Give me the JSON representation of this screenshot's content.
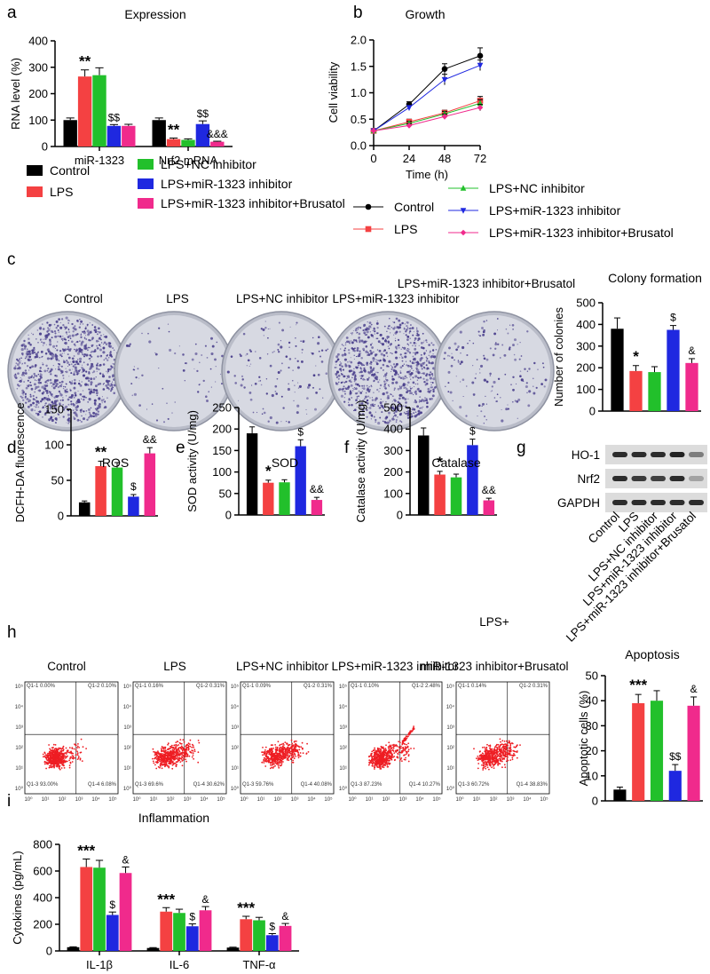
{
  "colors": {
    "Control": "#000000",
    "LPS": "#f44142",
    "LPS+NC inhibitor": "#22c02b",
    "LPS+miR-1323 inhibitor": "#1f28e0",
    "LPS+miR-1323 inhibitor+Brusatol": "#f02a8c"
  },
  "groups": [
    "Control",
    "LPS",
    "LPS+NC inhibitor",
    "LPS+miR-1323 inhibitor",
    "LPS+miR-1323 inhibitor+Brusatol"
  ],
  "labels": {
    "a": "a",
    "b": "b",
    "c": "c",
    "d": "d",
    "e": "e",
    "f": "f",
    "g": "g",
    "h": "h",
    "i": "i"
  },
  "panel_c_headers": [
    "Control",
    "LPS",
    "LPS+NC inhibitor",
    "LPS+miR-1323 inhibitor",
    "LPS+miR-1323 inhibitor+Brusatol"
  ],
  "panel_g": {
    "rows": [
      "HO-1",
      "Nrf2",
      "GAPDH"
    ],
    "lanes": [
      "Control",
      "LPS",
      "LPS+NC inhibitor",
      "LPS+miR-1323 inhibitor",
      "LPS+miR-1323 inhibitor+Brusatol"
    ]
  },
  "panel_h": {
    "headers": [
      "Control",
      "LPS",
      "LPS+NC inhibitor",
      "LPS+miR-1323 inhibitor",
      "LPS+",
      "miR-1323 inhibitor+Brusatol"
    ],
    "quadrants": [
      [
        "Q1-1\n0.00%",
        "Q1-2\n0.10%",
        "Q1-3\n93.00%",
        "Q1-4\n6.08%"
      ],
      [
        "Q1-1\n0.16%",
        "Q1-2\n0.31%",
        "Q1-3\n69.6%",
        "Q1-4\n30.62%"
      ],
      [
        "Q1-1\n0.09%",
        "Q1-2\n0.31%",
        "Q1-3\n59.76%",
        "Q1-4\n40.08%"
      ],
      [
        "Q1-1\n0.10%",
        "Q1-2\n2.48%",
        "Q1-3\n87.23%",
        "Q1-4\n10.27%"
      ],
      [
        "Q1-1\n0.14%",
        "Q1-2\n0.31%",
        "Q1-3\n60.72%",
        "Q1-4\n38.83%"
      ]
    ],
    "axis_ticks": [
      "10⁰",
      "10¹",
      "10²",
      "10³",
      "10⁴",
      "10⁵"
    ]
  },
  "chart_data": [
    {
      "panel": "a",
      "type": "bar",
      "title": "Expression",
      "ylabel": "RNA level (%)",
      "categories": [
        "miR-1323",
        "Nrf2 mRNA"
      ],
      "ylim": [
        0,
        400
      ],
      "yticks": [
        0,
        100,
        200,
        300,
        400
      ],
      "series": [
        {
          "name": "Control",
          "values": [
            100,
            100
          ],
          "err": [
            8,
            8
          ]
        },
        {
          "name": "LPS",
          "values": [
            265,
            28
          ],
          "err": [
            25,
            4
          ]
        },
        {
          "name": "LPS+NC inhibitor",
          "values": [
            270,
            25
          ],
          "err": [
            28,
            4
          ]
        },
        {
          "name": "LPS+miR-1323 inhibitor",
          "values": [
            78,
            85
          ],
          "err": [
            5,
            12
          ]
        },
        {
          "name": "LPS+miR-1323 inhibitor+Brusatol",
          "values": [
            78,
            18
          ],
          "err": [
            6,
            2
          ]
        }
      ],
      "annotations": [
        {
          "text": "**",
          "category": 0,
          "series": 1
        },
        {
          "text": "$$",
          "category": 0,
          "series": 3
        },
        {
          "text": "**",
          "category": 1,
          "series": 1
        },
        {
          "text": "$$",
          "category": 1,
          "series": 3
        },
        {
          "text": "&&&",
          "category": 1,
          "series": 4
        }
      ]
    },
    {
      "panel": "b",
      "type": "line",
      "title": "Growth",
      "xlabel": "Time (h)",
      "ylabel": "Cell viability",
      "x": [
        0,
        24,
        48,
        72
      ],
      "xlim": [
        0,
        72
      ],
      "xticks": [
        0,
        24,
        48,
        72
      ],
      "ylim": [
        0,
        2.0
      ],
      "yticks": [
        0,
        0.5,
        1.0,
        1.5,
        2.0
      ],
      "series": [
        {
          "name": "Control",
          "marker": "circle",
          "values": [
            0.28,
            0.78,
            1.45,
            1.7
          ],
          "err": [
            0.02,
            0.05,
            0.1,
            0.15
          ]
        },
        {
          "name": "LPS",
          "marker": "square",
          "values": [
            0.28,
            0.45,
            0.62,
            0.85
          ],
          "err": [
            0.02,
            0.05,
            0.05,
            0.08
          ]
        },
        {
          "name": "LPS+NC inhibitor",
          "marker": "triangle",
          "values": [
            0.28,
            0.42,
            0.6,
            0.8
          ],
          "err": [
            0.02,
            0.04,
            0.05,
            0.07
          ]
        },
        {
          "name": "LPS+miR-1323 inhibitor",
          "marker": "triangle-down",
          "values": [
            0.28,
            0.72,
            1.25,
            1.52
          ],
          "err": [
            0.02,
            0.05,
            0.1,
            0.1
          ]
        },
        {
          "name": "LPS+miR-1323 inhibitor+Brusatol",
          "marker": "diamond",
          "values": [
            0.28,
            0.38,
            0.55,
            0.72
          ],
          "err": [
            0.02,
            0.04,
            0.05,
            0.06
          ]
        }
      ]
    },
    {
      "panel": "c",
      "type": "bar",
      "title": "Colony formation",
      "ylabel": "Number of colonies",
      "ylim": [
        0,
        500
      ],
      "yticks": [
        0,
        100,
        200,
        300,
        400,
        500
      ],
      "values": [
        380,
        185,
        180,
        375,
        222
      ],
      "err": [
        50,
        25,
        25,
        20,
        20
      ],
      "annotations": [
        {
          "text": "*",
          "index": 1
        },
        {
          "text": "$",
          "index": 3
        },
        {
          "text": "&",
          "index": 4
        }
      ]
    },
    {
      "panel": "d",
      "type": "bar",
      "title": "ROS",
      "ylabel": "DCFH-DA fluorescence",
      "ylim": [
        0,
        150
      ],
      "yticks": [
        0,
        50,
        100,
        150
      ],
      "values": [
        19,
        70,
        68,
        27,
        88
      ],
      "err": [
        2,
        7,
        7,
        3,
        8
      ],
      "annotations": [
        {
          "text": "**",
          "index": 1
        },
        {
          "text": "$",
          "index": 3
        },
        {
          "text": "&&",
          "index": 4
        }
      ]
    },
    {
      "panel": "e",
      "type": "bar",
      "title": "SOD",
      "ylabel": "SOD activity (U/mg)",
      "ylim": [
        0,
        250
      ],
      "yticks": [
        0,
        50,
        100,
        150,
        200,
        250
      ],
      "values": [
        190,
        75,
        76,
        160,
        35
      ],
      "err": [
        15,
        6,
        6,
        15,
        6
      ],
      "annotations": [
        {
          "text": "*",
          "index": 1
        },
        {
          "text": "$",
          "index": 3
        },
        {
          "text": "&&",
          "index": 4
        }
      ]
    },
    {
      "panel": "f",
      "type": "bar",
      "title": "Catalase",
      "ylabel": "Catalase activity (U/mg)",
      "ylim": [
        0,
        500
      ],
      "yticks": [
        0,
        100,
        200,
        300,
        400,
        500
      ],
      "values": [
        370,
        188,
        175,
        325,
        68
      ],
      "err": [
        35,
        15,
        15,
        28,
        10
      ],
      "annotations": [
        {
          "text": "*",
          "index": 1
        },
        {
          "text": "$",
          "index": 3
        },
        {
          "text": "&&",
          "index": 4
        }
      ]
    },
    {
      "panel": "h",
      "type": "bar",
      "title": "Apoptosis",
      "ylabel": "Apoptotic cells (%)",
      "ylim": [
        0,
        50
      ],
      "yticks": [
        0,
        10,
        20,
        30,
        40,
        50
      ],
      "values": [
        4.5,
        39,
        40,
        12,
        38
      ],
      "err": [
        1,
        3.5,
        4,
        2.5,
        3.5
      ],
      "annotations": [
        {
          "text": "***",
          "index": 1
        },
        {
          "text": "$$",
          "index": 3
        },
        {
          "text": "&",
          "index": 4
        }
      ]
    },
    {
      "panel": "i",
      "type": "bar",
      "title": "Inflammation",
      "ylabel": "Cytokines (pg/mL)",
      "categories": [
        "IL-1β",
        "IL-6",
        "TNF-α"
      ],
      "ylim": [
        0,
        800
      ],
      "yticks": [
        0,
        200,
        400,
        600,
        800
      ],
      "series": [
        {
          "name": "Control",
          "values": [
            28,
            22,
            25
          ],
          "err": [
            3,
            3,
            3
          ]
        },
        {
          "name": "LPS",
          "values": [
            630,
            295,
            238
          ],
          "err": [
            60,
            30,
            22
          ]
        },
        {
          "name": "LPS+NC inhibitor",
          "values": [
            625,
            285,
            230
          ],
          "err": [
            55,
            28,
            22
          ]
        },
        {
          "name": "LPS+miR-1323 inhibitor",
          "values": [
            270,
            185,
            118
          ],
          "err": [
            22,
            18,
            12
          ]
        },
        {
          "name": "LPS+miR-1323 inhibitor+Brusatol",
          "values": [
            585,
            305,
            188
          ],
          "err": [
            45,
            28,
            18
          ]
        }
      ],
      "annotations": [
        {
          "text": "***",
          "category": 0,
          "series": 1
        },
        {
          "text": "$",
          "category": 0,
          "series": 3
        },
        {
          "text": "&",
          "category": 0,
          "series": 4
        },
        {
          "text": "***",
          "category": 1,
          "series": 1
        },
        {
          "text": "$",
          "category": 1,
          "series": 3
        },
        {
          "text": "&",
          "category": 1,
          "series": 4
        },
        {
          "text": "***",
          "category": 2,
          "series": 1
        },
        {
          "text": "$",
          "category": 2,
          "series": 3
        },
        {
          "text": "&",
          "category": 2,
          "series": 4
        }
      ]
    }
  ]
}
